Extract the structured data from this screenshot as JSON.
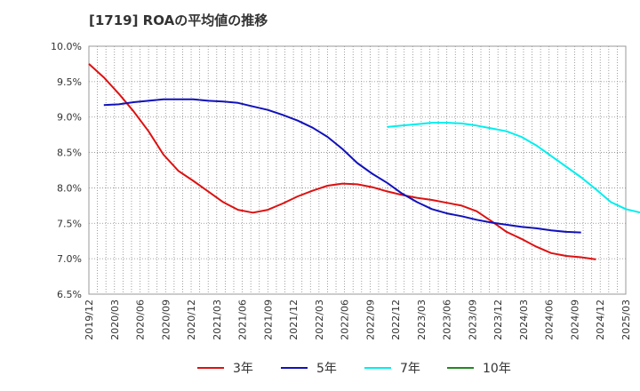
{
  "chart_data": {
    "type": "line",
    "title": "[1719]  ROAの平均値の推移",
    "x_ticks": [
      "2019/12",
      "2020/03",
      "2020/06",
      "2020/09",
      "2020/12",
      "2021/03",
      "2021/06",
      "2021/09",
      "2021/12",
      "2022/03",
      "2022/06",
      "2022/09",
      "2022/12",
      "2023/03",
      "2023/06",
      "2023/09",
      "2023/12",
      "2024/03",
      "2024/06",
      "2024/09",
      "2024/12",
      "2025/03"
    ],
    "y_ticks": [
      "6.5%",
      "7.0%",
      "7.5%",
      "8.0%",
      "8.5%",
      "9.0%",
      "9.5%",
      "10.0%"
    ],
    "ylim": [
      6.5,
      10.0
    ],
    "grid": true,
    "legend_position": "bottom",
    "series": [
      {
        "name": "3年",
        "color": "#dd1111",
        "start_index": 0,
        "values": [
          9.75,
          9.56,
          9.33,
          9.08,
          8.8,
          8.47,
          8.24,
          8.1,
          7.95,
          7.8,
          7.69,
          7.65,
          7.69,
          7.78,
          7.88,
          7.96,
          8.03,
          8.06,
          8.05,
          8.01,
          7.95,
          7.9,
          7.86,
          7.83,
          7.79,
          7.75,
          7.67,
          7.53,
          7.38,
          7.28,
          7.17,
          7.08,
          7.04,
          7.02,
          6.99
        ]
      },
      {
        "name": "5年",
        "color": "#1111bb",
        "start_index": 1,
        "values": [
          9.17,
          9.18,
          9.21,
          9.23,
          9.25,
          9.25,
          9.25,
          9.23,
          9.22,
          9.2,
          9.15,
          9.1,
          9.03,
          8.95,
          8.85,
          8.72,
          8.55,
          8.35,
          8.2,
          8.07,
          7.92,
          7.8,
          7.7,
          7.64,
          7.6,
          7.55,
          7.51,
          7.48,
          7.45,
          7.43,
          7.4,
          7.38,
          7.37
        ]
      },
      {
        "name": "7年",
        "color": "#00eeee",
        "start_index": 20,
        "values": [
          8.86,
          8.88,
          8.9,
          8.92,
          8.92,
          8.91,
          8.88,
          8.84,
          8.8,
          8.72,
          8.6,
          8.45,
          8.3,
          8.15,
          7.98,
          7.8,
          7.7,
          7.65
        ]
      },
      {
        "name": "10年",
        "color": "#228822",
        "start_index": 0,
        "values": []
      }
    ]
  }
}
